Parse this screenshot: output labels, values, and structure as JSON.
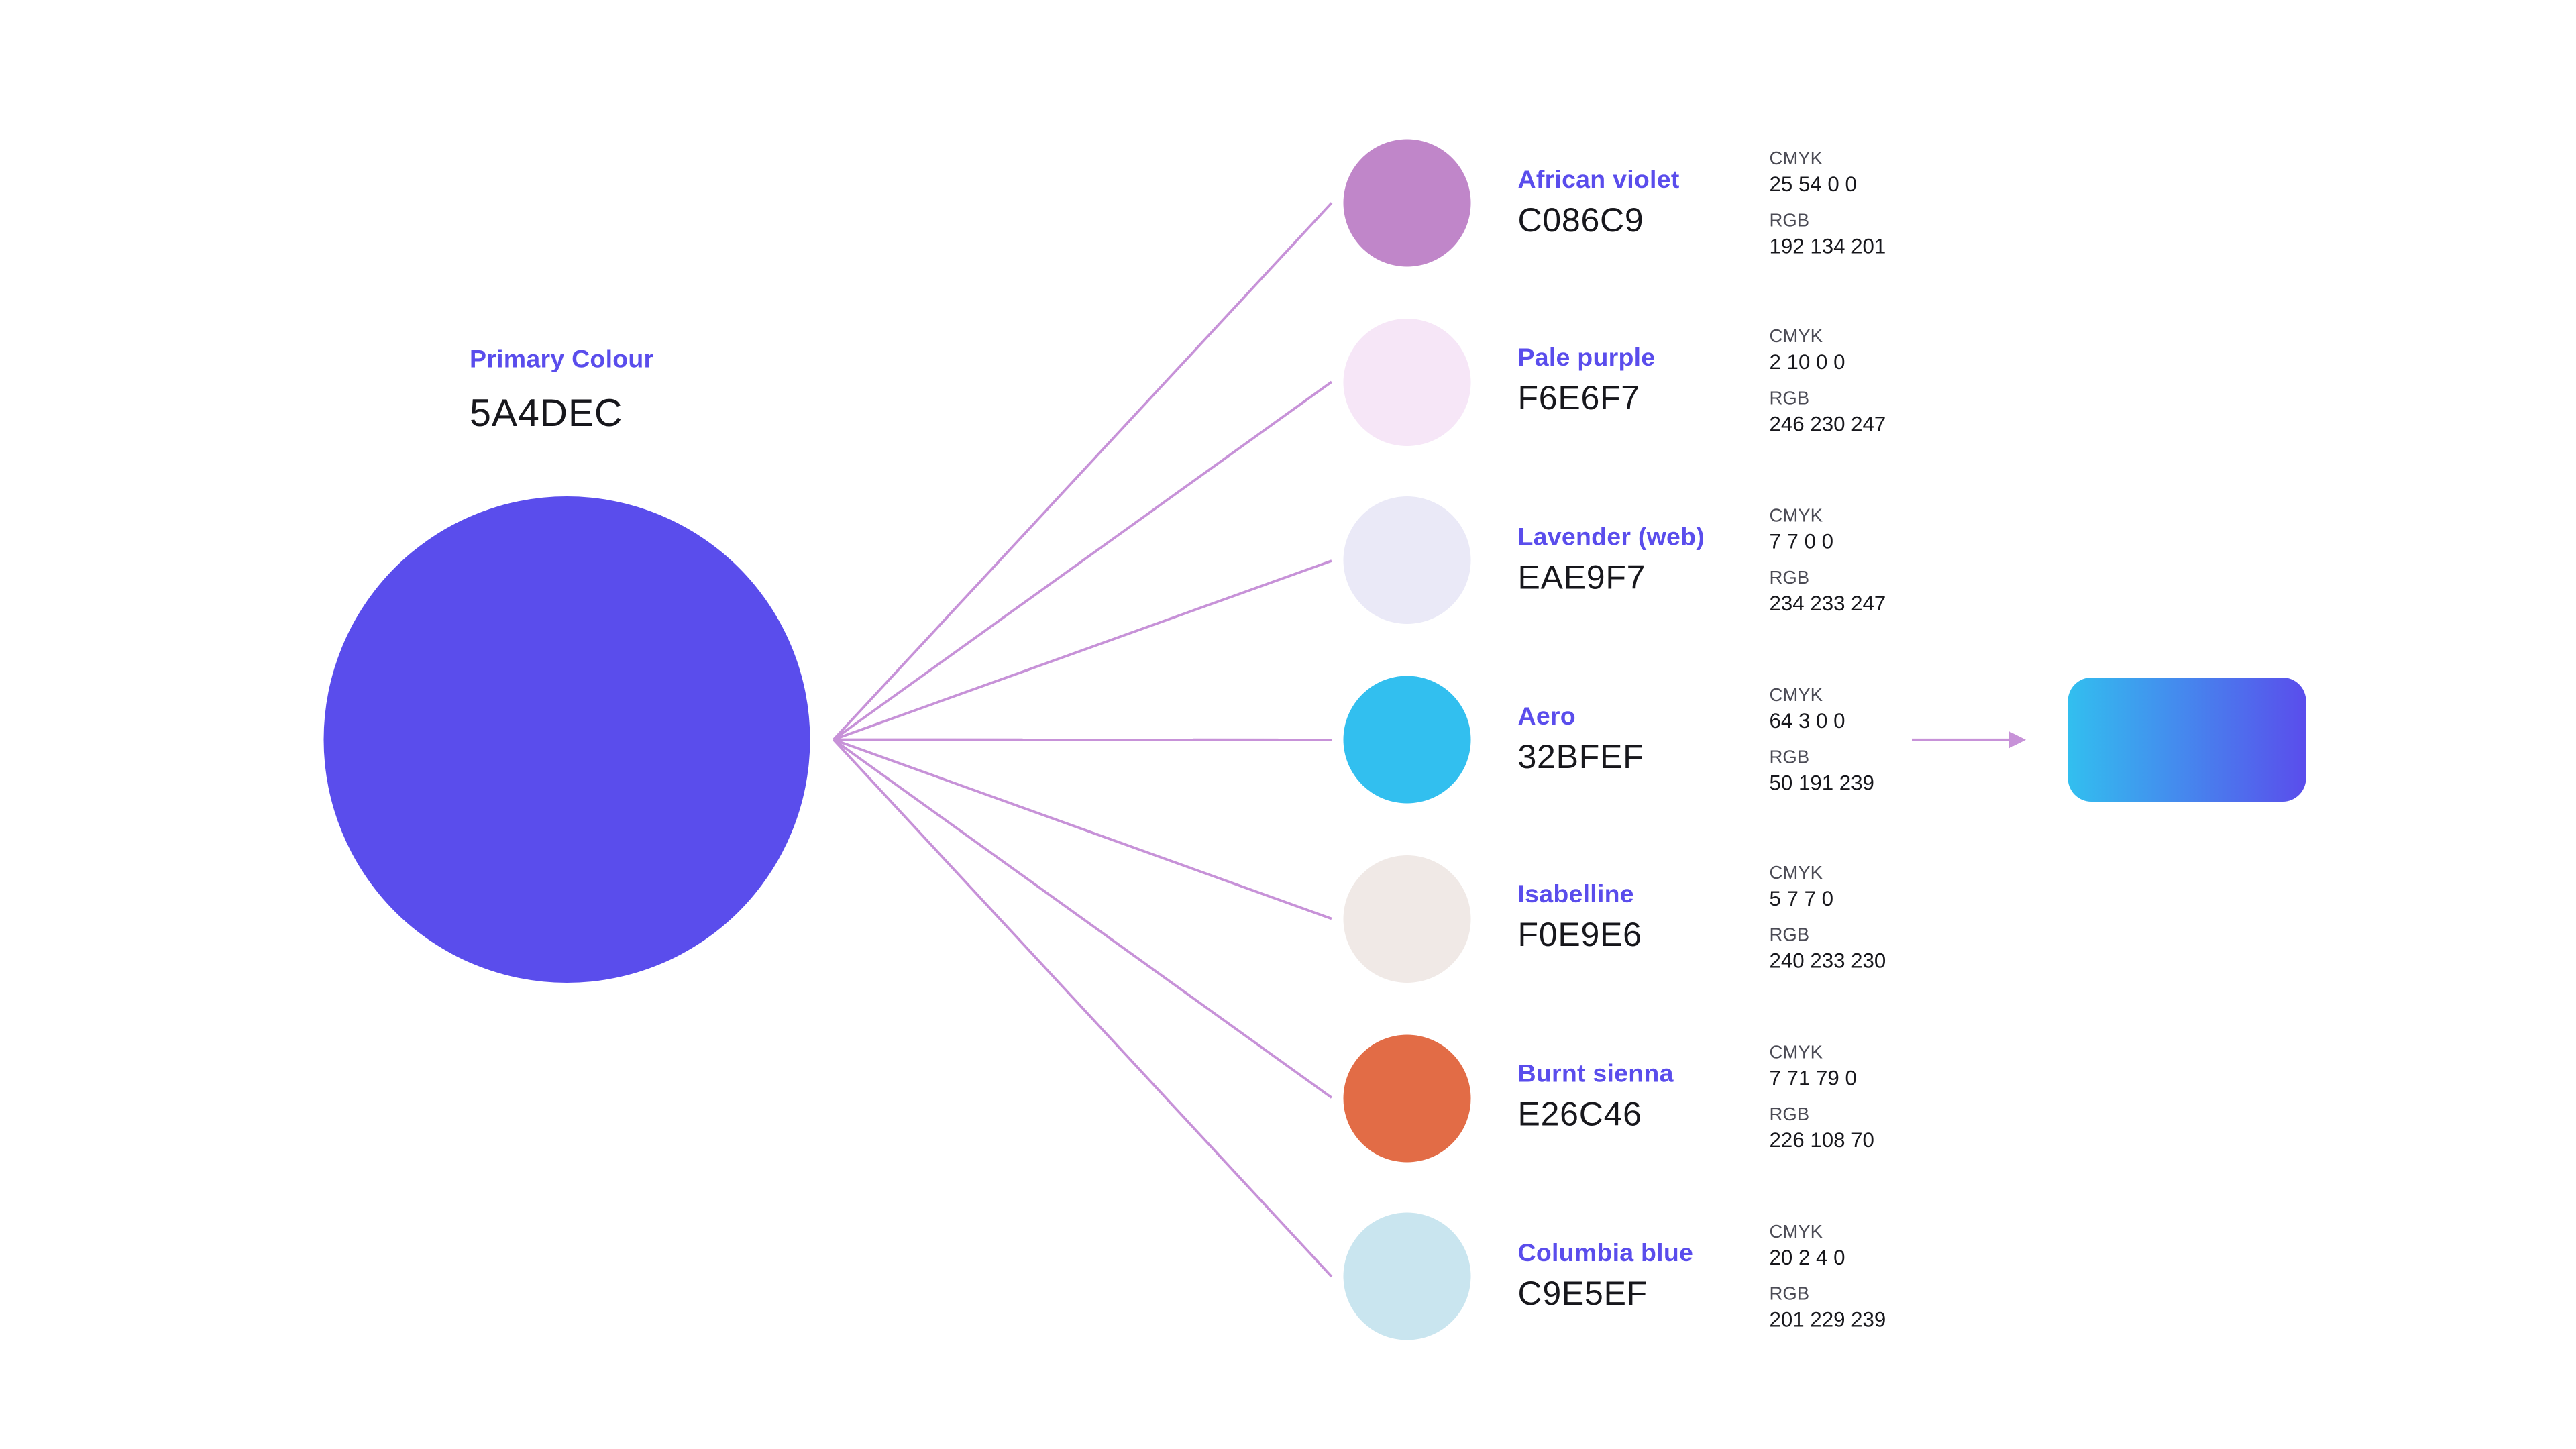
{
  "diagram": {
    "connector_color": "#C792D8",
    "arrow_color": "#C792D8",
    "accent_text": "#5A4DEC"
  },
  "labels": {
    "cmyk": "CMYK",
    "rgb": "RGB"
  },
  "primary": {
    "label": "Primary Colour",
    "hex": "5A4DEC",
    "color": "#5A4DEC"
  },
  "swatches": [
    {
      "name": "African violet",
      "hex": "C086C9",
      "color": "#C086C9",
      "cmyk": "25 54 0 0",
      "rgb": "192 134 201"
    },
    {
      "name": "Pale purple",
      "hex": "F6E6F7",
      "color": "#F6E6F7",
      "cmyk": "2 10 0 0",
      "rgb": "246 230 247"
    },
    {
      "name": "Lavender (web)",
      "hex": "EAE9F7",
      "color": "#EAE9F7",
      "cmyk": "7 7 0 0",
      "rgb": "234 233 247"
    },
    {
      "name": "Aero",
      "hex": "32BFEF",
      "color": "#32BFEF",
      "cmyk": "64 3 0 0",
      "rgb": "50 191 239"
    },
    {
      "name": "Isabelline",
      "hex": "F0E9E6",
      "color": "#F0E9E6",
      "cmyk": "5 7 7 0",
      "rgb": "240 233 230"
    },
    {
      "name": "Burnt sienna",
      "hex": "E26C46",
      "color": "#E26C46",
      "cmyk": "7 71 79 0",
      "rgb": "226 108 70"
    },
    {
      "name": "Columbia blue",
      "hex": "C9E5EF",
      "color": "#C9E5EF",
      "cmyk": "20 2 4 0",
      "rgb": "201 229 239"
    }
  ],
  "gradient_swatch": {
    "from": "#32BFEF",
    "to": "#5A4DEC"
  }
}
